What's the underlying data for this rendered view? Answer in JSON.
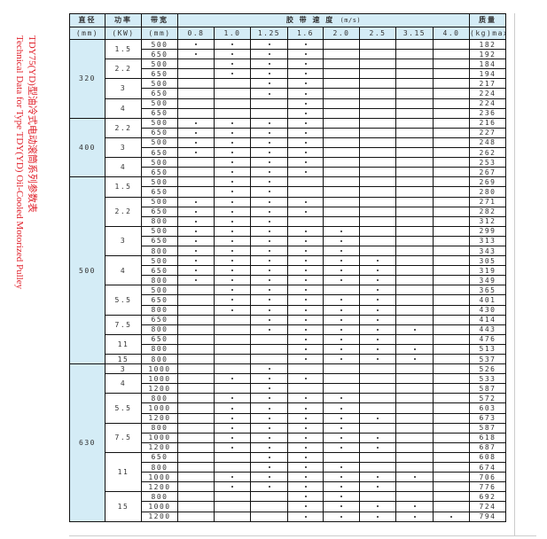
{
  "caption": {
    "title_zh": "TDY75(YD)型油冷式电动滚筒系列参数表",
    "title_en": "Technical Data for Type TDY(YD) Oil-Cooled Motorized Pulley",
    "color": "#e0202a"
  },
  "header": {
    "diameter": "直径",
    "diameter_unit": "(mm)",
    "power": "功率",
    "power_unit": "(KW)",
    "width": "带宽",
    "width_unit": "(mm)",
    "speed": "胶 带 速 度",
    "speed_unit": "(m/s)",
    "mass": "质量",
    "mass_unit": "(kg)max",
    "speeds": [
      "0.8",
      "1.0",
      "1.25",
      "1.6",
      "2.0",
      "2.5",
      "3.15",
      "4.0"
    ]
  },
  "colors": {
    "header_bg": "#d4ecf6",
    "border": "#111111"
  },
  "groups": [
    {
      "diameter": "320",
      "powers": [
        {
          "power": "1.5",
          "rows": [
            {
              "width": "500",
              "speeds": [
                "0.8",
                "1.0",
                "1.25",
                "1.6"
              ],
              "mass": "182"
            },
            {
              "width": "650",
              "speeds": [
                "0.8",
                "1.0",
                "1.25",
                "1.6"
              ],
              "mass": "192"
            }
          ]
        },
        {
          "power": "2.2",
          "rows": [
            {
              "width": "500",
              "speeds": [
                "1.0",
                "1.25",
                "1.6"
              ],
              "mass": "184"
            },
            {
              "width": "650",
              "speeds": [
                "1.0",
                "1.25",
                "1.6"
              ],
              "mass": "194"
            }
          ]
        },
        {
          "power": "3",
          "rows": [
            {
              "width": "500",
              "speeds": [
                "1.25",
                "1.6"
              ],
              "mass": "217"
            },
            {
              "width": "650",
              "speeds": [
                "1.25",
                "1.6"
              ],
              "mass": "224"
            }
          ]
        },
        {
          "power": "4",
          "rows": [
            {
              "width": "500",
              "speeds": [
                "1.6"
              ],
              "mass": "224"
            },
            {
              "width": "650",
              "speeds": [
                "1.6"
              ],
              "mass": "236"
            }
          ]
        }
      ]
    },
    {
      "diameter": "400",
      "powers": [
        {
          "power": "2.2",
          "rows": [
            {
              "width": "500",
              "speeds": [
                "0.8",
                "1.0",
                "1.25",
                "1.6"
              ],
              "mass": "216"
            },
            {
              "width": "650",
              "speeds": [
                "0.8",
                "1.0",
                "1.25",
                "1.6"
              ],
              "mass": "227"
            }
          ]
        },
        {
          "power": "3",
          "rows": [
            {
              "width": "500",
              "speeds": [
                "0.8",
                "1.0",
                "1.25",
                "1.6"
              ],
              "mass": "248"
            },
            {
              "width": "650",
              "speeds": [
                "0.8",
                "1.0",
                "1.25",
                "1.6"
              ],
              "mass": "262"
            }
          ]
        },
        {
          "power": "4",
          "rows": [
            {
              "width": "500",
              "speeds": [
                "1.0",
                "1.25",
                "1.6"
              ],
              "mass": "253"
            },
            {
              "width": "650",
              "speeds": [
                "1.0",
                "1.25",
                "1.6"
              ],
              "mass": "267"
            }
          ]
        }
      ]
    },
    {
      "diameter": "500",
      "powers": [
        {
          "power": "1.5",
          "rows": [
            {
              "width": "500",
              "speeds": [
                "1.0",
                "1.25"
              ],
              "mass": "269"
            },
            {
              "width": "650",
              "speeds": [
                "1.0",
                "1.25"
              ],
              "mass": "280"
            }
          ]
        },
        {
          "power": "2.2",
          "rows": [
            {
              "width": "500",
              "speeds": [
                "0.8",
                "1.0",
                "1.25",
                "1.6"
              ],
              "mass": "271"
            },
            {
              "width": "650",
              "speeds": [
                "0.8",
                "1.0",
                "1.25",
                "1.6"
              ],
              "mass": "282"
            },
            {
              "width": "800",
              "speeds": [
                "0.8",
                "1.0",
                "1.25"
              ],
              "mass": "312"
            }
          ]
        },
        {
          "power": "3",
          "rows": [
            {
              "width": "500",
              "speeds": [
                "0.8",
                "1.0",
                "1.25",
                "1.6",
                "2.0"
              ],
              "mass": "299"
            },
            {
              "width": "650",
              "speeds": [
                "0.8",
                "1.0",
                "1.25",
                "1.6",
                "2.0"
              ],
              "mass": "313"
            },
            {
              "width": "800",
              "speeds": [
                "0.8",
                "1.0",
                "1.25",
                "1.6",
                "2.0"
              ],
              "mass": "343"
            }
          ]
        },
        {
          "power": "4",
          "rows": [
            {
              "width": "500",
              "speeds": [
                "0.8",
                "1.0",
                "1.25",
                "1.6",
                "2.0",
                "2.5"
              ],
              "mass": "305"
            },
            {
              "width": "650",
              "speeds": [
                "0.8",
                "1.0",
                "1.25",
                "1.6",
                "2.0",
                "2.5"
              ],
              "mass": "319"
            },
            {
              "width": "800",
              "speeds": [
                "0.8",
                "1.0",
                "1.25",
                "1.6",
                "2.0",
                "2.5"
              ],
              "mass": "349"
            }
          ]
        },
        {
          "power": "5.5",
          "rows": [
            {
              "width": "500",
              "speeds": [
                "1.0",
                "1.25",
                "1.6",
                "2.5"
              ],
              "mass": "365"
            },
            {
              "width": "650",
              "speeds": [
                "1.0",
                "1.25",
                "1.6",
                "2.0",
                "2.5"
              ],
              "mass": "401"
            },
            {
              "width": "800",
              "speeds": [
                "1.0",
                "1.25",
                "1.6",
                "2.0",
                "2.5"
              ],
              "mass": "430"
            }
          ]
        },
        {
          "power": "7.5",
          "rows": [
            {
              "width": "650",
              "speeds": [
                "1.25",
                "1.6",
                "2.0",
                "2.5"
              ],
              "mass": "414"
            },
            {
              "width": "800",
              "speeds": [
                "1.25",
                "1.6",
                "2.0",
                "2.5",
                "3.15"
              ],
              "mass": "443"
            }
          ]
        },
        {
          "power": "11",
          "rows": [
            {
              "width": "650",
              "speeds": [
                "1.6",
                "2.0",
                "2.5"
              ],
              "mass": "476"
            },
            {
              "width": "800",
              "speeds": [
                "1.6",
                "2.0",
                "2.5",
                "3.15"
              ],
              "mass": "513"
            }
          ]
        },
        {
          "power": "15",
          "rows": [
            {
              "width": "800",
              "speeds": [
                "1.6",
                "2.0",
                "2.5",
                "3.15"
              ],
              "mass": "537"
            }
          ]
        }
      ]
    },
    {
      "diameter": "630",
      "powers": [
        {
          "power": "3",
          "rows": [
            {
              "width": "1000",
              "speeds": [
                "1.25"
              ],
              "mass": "526"
            }
          ]
        },
        {
          "power": "4",
          "rows": [
            {
              "width": "1000",
              "speeds": [
                "1.0",
                "1.25",
                "1.6"
              ],
              "mass": "533"
            },
            {
              "width": "1200",
              "speeds": [
                "1.25"
              ],
              "mass": "587"
            }
          ]
        },
        {
          "power": "5.5",
          "rows": [
            {
              "width": "800",
              "speeds": [
                "1.0",
                "1.25",
                "1.6",
                "2.0"
              ],
              "mass": "572"
            },
            {
              "width": "1000",
              "speeds": [
                "1.0",
                "1.25",
                "1.6",
                "2.0"
              ],
              "mass": "603"
            },
            {
              "width": "1200",
              "speeds": [
                "1.0",
                "1.25",
                "1.6",
                "2.0",
                "2.5"
              ],
              "mass": "673"
            }
          ]
        },
        {
          "power": "7.5",
          "rows": [
            {
              "width": "800",
              "speeds": [
                "1.0",
                "1.25",
                "1.6",
                "2.0"
              ],
              "mass": "587"
            },
            {
              "width": "1000",
              "speeds": [
                "1.0",
                "1.25",
                "1.6",
                "2.0",
                "2.5"
              ],
              "mass": "618"
            },
            {
              "width": "1200",
              "speeds": [
                "1.0",
                "1.25",
                "1.6",
                "2.0",
                "2.5"
              ],
              "mass": "687"
            }
          ]
        },
        {
          "power": "11",
          "rows": [
            {
              "width": "650",
              "speeds": [
                "1.25",
                "1.6"
              ],
              "mass": "608"
            },
            {
              "width": "800",
              "speeds": [
                "1.25",
                "1.6",
                "2.0"
              ],
              "mass": "674"
            },
            {
              "width": "1000",
              "speeds": [
                "1.0",
                "1.25",
                "1.6",
                "2.0",
                "2.5",
                "3.15"
              ],
              "mass": "706"
            },
            {
              "width": "1200",
              "speeds": [
                "1.0",
                "1.25",
                "1.6",
                "2.0",
                "2.5"
              ],
              "mass": "776"
            }
          ]
        },
        {
          "power": "15",
          "rows": [
            {
              "width": "800",
              "speeds": [
                "1.6",
                "2.0"
              ],
              "mass": "692"
            },
            {
              "width": "1000",
              "speeds": [
                "1.6",
                "2.0",
                "2.5",
                "3.15"
              ],
              "mass": "724"
            },
            {
              "width": "1200",
              "speeds": [
                "1.6",
                "2.0",
                "2.5",
                "3.15",
                "4.0"
              ],
              "mass": "794"
            }
          ]
        }
      ]
    }
  ]
}
